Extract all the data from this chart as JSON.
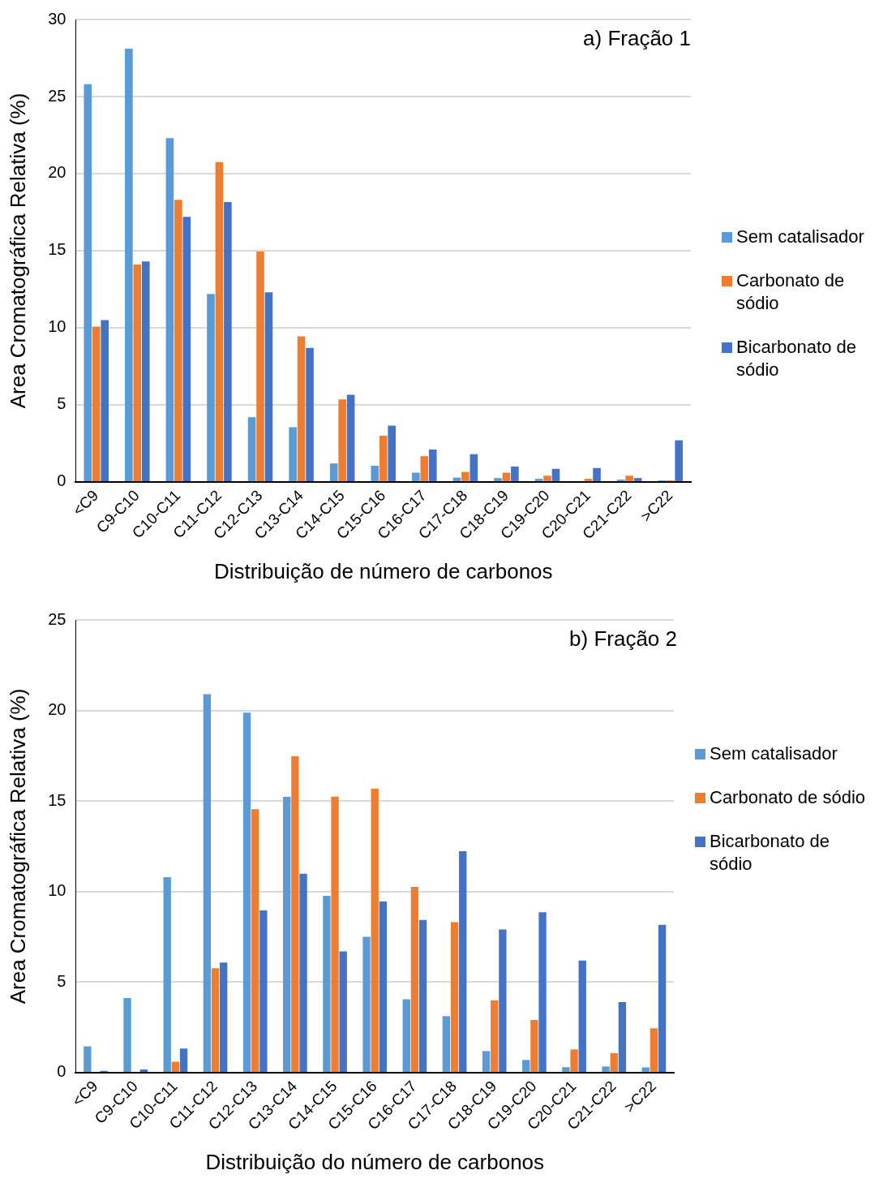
{
  "chart_data": [
    {
      "type": "bar",
      "title": "a) Fração 1",
      "xlabel": "Distribuição de número de carbonos",
      "ylabel": "Area Cromatográfica Relativa (%)",
      "categories": [
        "<C9",
        "C9-C10",
        "C10-C11",
        "C11-C12",
        "C12-C13",
        "C13-C14",
        "C14-C15",
        "C15-C16",
        "C16-C17",
        "C17-C18",
        "C18-C19",
        "C19-C20",
        "C20-C21",
        "C21-C22",
        ">C22"
      ],
      "series": [
        {
          "name": "Sem catalisador",
          "color": "#5b9bd5",
          "values": [
            25.8,
            28.1,
            22.3,
            12.2,
            4.2,
            3.55,
            1.2,
            1.05,
            0.6,
            0.28,
            0.25,
            0.2,
            0,
            0.15,
            0.1
          ]
        },
        {
          "name": "Carbonato de sódio",
          "color": "#ed7d31",
          "values": [
            10.07,
            14.1,
            18.3,
            20.75,
            14.95,
            9.45,
            5.35,
            3.0,
            1.67,
            0.65,
            0.6,
            0.4,
            0.2,
            0.4,
            0.1
          ]
        },
        {
          "name": "Bicarbonato de sódio",
          "color": "#4472c4",
          "values": [
            10.5,
            14.3,
            17.2,
            18.15,
            12.3,
            8.7,
            5.65,
            3.65,
            2.1,
            1.8,
            1.0,
            0.85,
            0.9,
            0.25,
            2.7
          ]
        }
      ],
      "ylim": [
        0,
        30
      ],
      "yticks": [
        0,
        5,
        10,
        15,
        20,
        25,
        30
      ],
      "grid": "y",
      "legend": "right"
    },
    {
      "type": "bar",
      "title": "b) Fração 2",
      "xlabel": "Distribuição do número de carbonos",
      "ylabel": "Area Cromatográfica Relativa (%)",
      "categories": [
        "<C9",
        "C9-C10",
        "C10-C11",
        "C11-C12",
        "C12-C13",
        "C13-C14",
        "C14-C15",
        "C15-C16",
        "C16-C17",
        "C17-C18",
        "C18-C19",
        "C19-C20",
        "C20-C21",
        "C21-C22",
        ">C22"
      ],
      "series": [
        {
          "name": "Sem catalisador",
          "color": "#5b9bd5",
          "values": [
            1.45,
            4.12,
            10.8,
            20.9,
            19.88,
            15.23,
            9.76,
            7.5,
            4.05,
            3.12,
            1.19,
            0.7,
            0.3,
            0.34,
            0.29
          ]
        },
        {
          "name": "Carbonato de sódio",
          "color": "#ed7d31",
          "values": [
            0,
            0,
            0.6,
            5.76,
            14.55,
            17.47,
            15.24,
            15.68,
            10.26,
            8.31,
            4.0,
            2.91,
            1.28,
            1.07,
            2.45
          ]
        },
        {
          "name": "Bicarbonato de sódio",
          "color": "#4472c4",
          "values": [
            0.1,
            0.18,
            1.33,
            6.08,
            8.96,
            10.99,
            6.7,
            9.45,
            8.43,
            12.23,
            7.91,
            8.86,
            6.19,
            3.9,
            8.16
          ]
        }
      ],
      "ylim": [
        0,
        25
      ],
      "yticks": [
        0,
        5,
        10,
        15,
        20,
        25
      ],
      "grid": "y",
      "legend": "right"
    }
  ]
}
